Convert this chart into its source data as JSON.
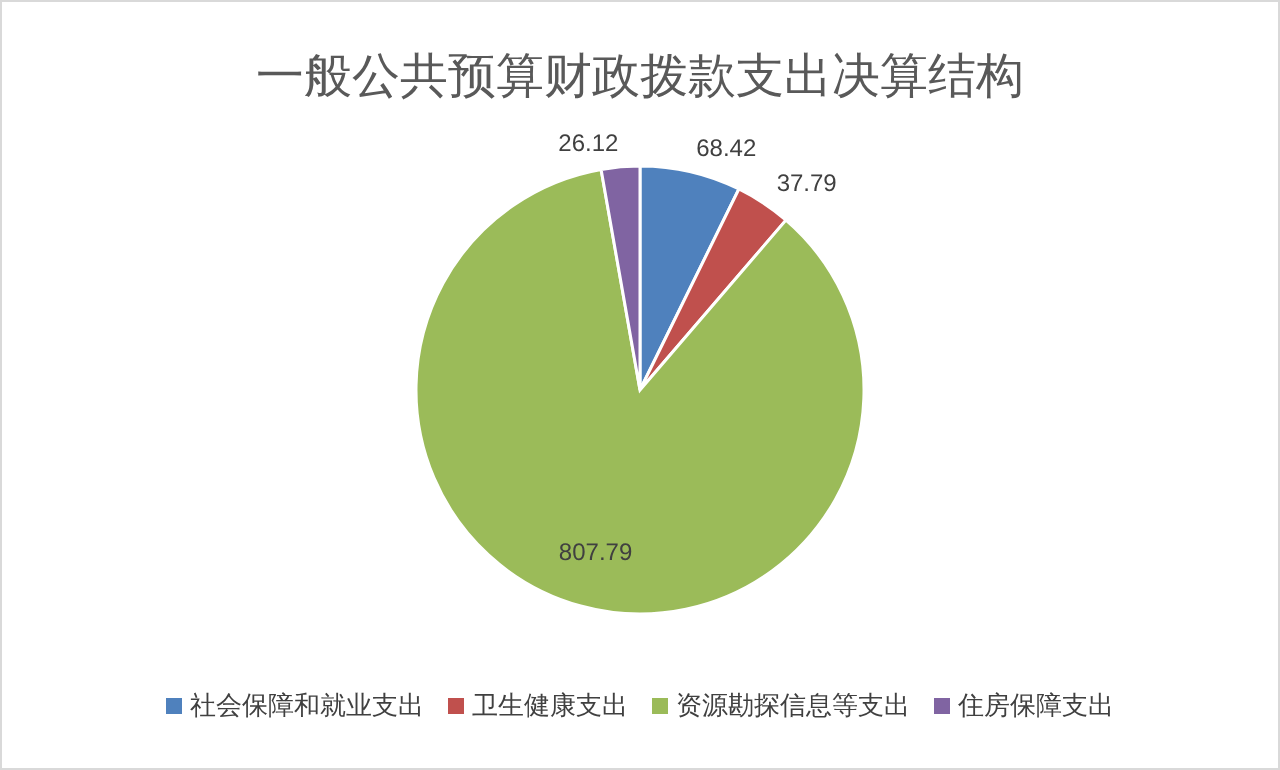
{
  "chart_data": {
    "type": "pie",
    "title": "一般公共预算财政拨款支出决算结构",
    "categories": [
      "社会保障和就业支出",
      "卫生健康支出",
      "资源勘探信息等支出",
      "住房保障支出"
    ],
    "values": [
      68.42,
      37.79,
      807.79,
      26.12
    ],
    "colors": [
      "#4f81bd",
      "#c0504d",
      "#9bbb59",
      "#8064a2"
    ],
    "data_labels": true,
    "legend": "bottom"
  }
}
